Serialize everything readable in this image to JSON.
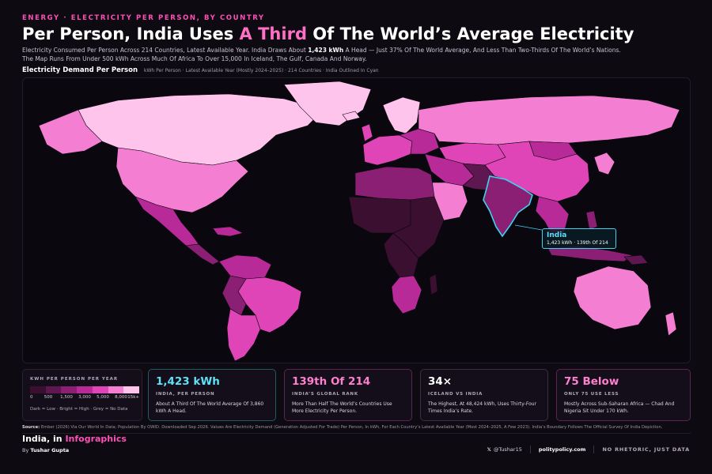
{
  "header": {
    "kicker": "ENERGY · ELECTRICITY PER PERSON, BY COUNTRY",
    "title_pre": "Per Person, India Uses ",
    "title_highlight": "A Third",
    "title_post": " Of The World’s Average Electricity",
    "subtitle_pre": "Electricity Consumed Per Person Across 214 Countries, Latest Available Year. India Draws About ",
    "subtitle_bold": "1,423 kWh",
    "subtitle_post": " A Head — Just 37% Of The World Average, And Less Than Two-Thirds Of The World’s Nations. The Map Runs From Under 500 kWh Across Much Of Africa To Over 15,000 In Iceland, The Gulf, Canada And Norway."
  },
  "map": {
    "heading": "Electricity Demand Per Person",
    "heading_note": "kWh Per Person · Latest Available Year (Mostly 2024–2025) · 214 Countries · India Outlined In Cyan",
    "highlight_color": "#3fd3ee",
    "callout": {
      "name": "India",
      "value": "1,423 kWh · 139th Of 214"
    }
  },
  "legend": {
    "title": "KWH PER PERSON PER YEAR",
    "ticks": [
      "0",
      "500",
      "1,500",
      "3,000",
      "5,000",
      "8,000",
      "15k+"
    ],
    "colors": [
      "#3a0f30",
      "#5e1750",
      "#8a1f74",
      "#b82a98",
      "#e045b8",
      "#f47fd2",
      "#ffc4ec"
    ],
    "note": "Dark = Low · Bright = High · Grey = No Data"
  },
  "stats": [
    {
      "value": "1,423 kWh",
      "label": "INDIA, PER PERSON",
      "desc": "About A Third Of The World Average Of 3,860 kWh A Head."
    },
    {
      "value": "139th Of 214",
      "label": "INDIA’S GLOBAL RANK",
      "desc": "More Than Half The World’s Countries Use More Electricity Per Person."
    },
    {
      "value": "34×",
      "label": "ICELAND VS INDIA",
      "desc": "The Highest, At 48,424 kWh, Uses Thirty-Four Times India’s Rate."
    },
    {
      "value": "75 Below",
      "label": "ONLY 75 USE LESS",
      "desc": "Mostly Across Sub-Saharan Africa — Chad And Nigeria Sit Under 170 kWh."
    }
  ],
  "source": {
    "label": "Source:",
    "text": " Ember (2026) Via Our World In Data; Population By OWID. Downloaded Sep 2026. Values Are Electricity Demand (Generation Adjusted For Trade) Per Person, In kWh, For Each Country’s Latest Available Year (Most 2024–2025, A Few 2023). India’s Boundary Follows The Official Survey Of India Depiction."
  },
  "footer": {
    "brand_pre": "India, in ",
    "brand_highlight": "Infographics",
    "by_pre": "By ",
    "by_name": "Tushar Gupta",
    "x_icon": "x-logo-icon",
    "handle": "@Tushar15",
    "site": "politypolicy.com",
    "tagline": "NO RHETORIC, JUST DATA"
  }
}
